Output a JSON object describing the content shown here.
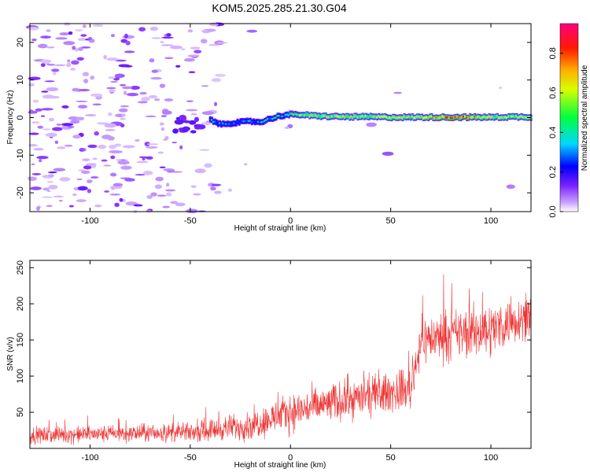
{
  "title": "KOM5.2025.285.21.30.G04",
  "colorbar": {
    "label": "Normalized spectral amplitude",
    "ticks": [
      "0.0",
      "0.2",
      "0.4",
      "0.6",
      "0.8"
    ],
    "tick_values": [
      0.0,
      0.2,
      0.4,
      0.6,
      0.8
    ],
    "range": [
      0,
      0.95
    ],
    "colors": [
      "#ffffff",
      "#b070ff",
      "#0000ff",
      "#00e0ff",
      "#00ff00",
      "#ffff00",
      "#ff8000",
      "#ff0000",
      "#ff0080"
    ]
  },
  "chart_data": [
    {
      "type": "heatmap",
      "xlabel": "Height of straight line (km)",
      "ylabel": "Frequency (Hz)",
      "xlim": [
        -130,
        120
      ],
      "ylim": [
        -25,
        25
      ],
      "xticks": [
        -100,
        -50,
        0,
        50,
        100
      ],
      "yticks": [
        -20,
        -10,
        0,
        10,
        20
      ],
      "ridge": [
        {
          "x": -40,
          "y": -0.5,
          "amp": 0.3
        },
        {
          "x": -35,
          "y": -1.8,
          "amp": 0.25
        },
        {
          "x": -30,
          "y": -1.5,
          "amp": 0.25
        },
        {
          "x": -25,
          "y": -1.2,
          "amp": 0.25
        },
        {
          "x": -20,
          "y": -1.0,
          "amp": 0.25
        },
        {
          "x": -15,
          "y": -1.2,
          "amp": 0.3
        },
        {
          "x": -10,
          "y": -0.3,
          "amp": 0.35
        },
        {
          "x": -5,
          "y": 0.5,
          "amp": 0.35
        },
        {
          "x": 0,
          "y": 0.8,
          "amp": 0.45
        },
        {
          "x": 5,
          "y": 0.8,
          "amp": 0.5
        },
        {
          "x": 10,
          "y": 0.5,
          "amp": 0.6
        },
        {
          "x": 20,
          "y": 0.3,
          "amp": 0.55
        },
        {
          "x": 30,
          "y": 0.2,
          "amp": 0.6
        },
        {
          "x": 40,
          "y": 0.2,
          "amp": 0.55
        },
        {
          "x": 50,
          "y": 0.1,
          "amp": 0.6
        },
        {
          "x": 60,
          "y": 0.1,
          "amp": 0.55
        },
        {
          "x": 70,
          "y": 0.1,
          "amp": 0.65
        },
        {
          "x": 80,
          "y": 0.1,
          "amp": 0.8
        },
        {
          "x": 90,
          "y": 0.1,
          "amp": 0.7
        },
        {
          "x": 100,
          "y": 0.1,
          "amp": 0.6
        },
        {
          "x": 110,
          "y": 0.2,
          "amp": 0.55
        },
        {
          "x": 120,
          "y": 0.2,
          "amp": 0.6
        }
      ]
    },
    {
      "type": "line",
      "xlabel": "Height of straight line (km)",
      "ylabel": "SNR (v/v)",
      "xlim": [
        -130,
        120
      ],
      "ylim": [
        0,
        260
      ],
      "xticks": [
        -100,
        -50,
        0,
        50,
        100
      ],
      "yticks": [
        50,
        100,
        150,
        200,
        250
      ],
      "color": "#ee3333",
      "trend": [
        {
          "x": -130,
          "mean": 18,
          "spread": 12
        },
        {
          "x": -50,
          "mean": 22,
          "spread": 14
        },
        {
          "x": -20,
          "mean": 32,
          "spread": 22
        },
        {
          "x": 0,
          "mean": 50,
          "spread": 28
        },
        {
          "x": 30,
          "mean": 68,
          "spread": 30
        },
        {
          "x": 60,
          "mean": 82,
          "spread": 30
        },
        {
          "x": 65,
          "mean": 150,
          "spread": 35
        },
        {
          "x": 100,
          "mean": 165,
          "spread": 40
        },
        {
          "x": 120,
          "mean": 185,
          "spread": 30
        }
      ]
    }
  ]
}
